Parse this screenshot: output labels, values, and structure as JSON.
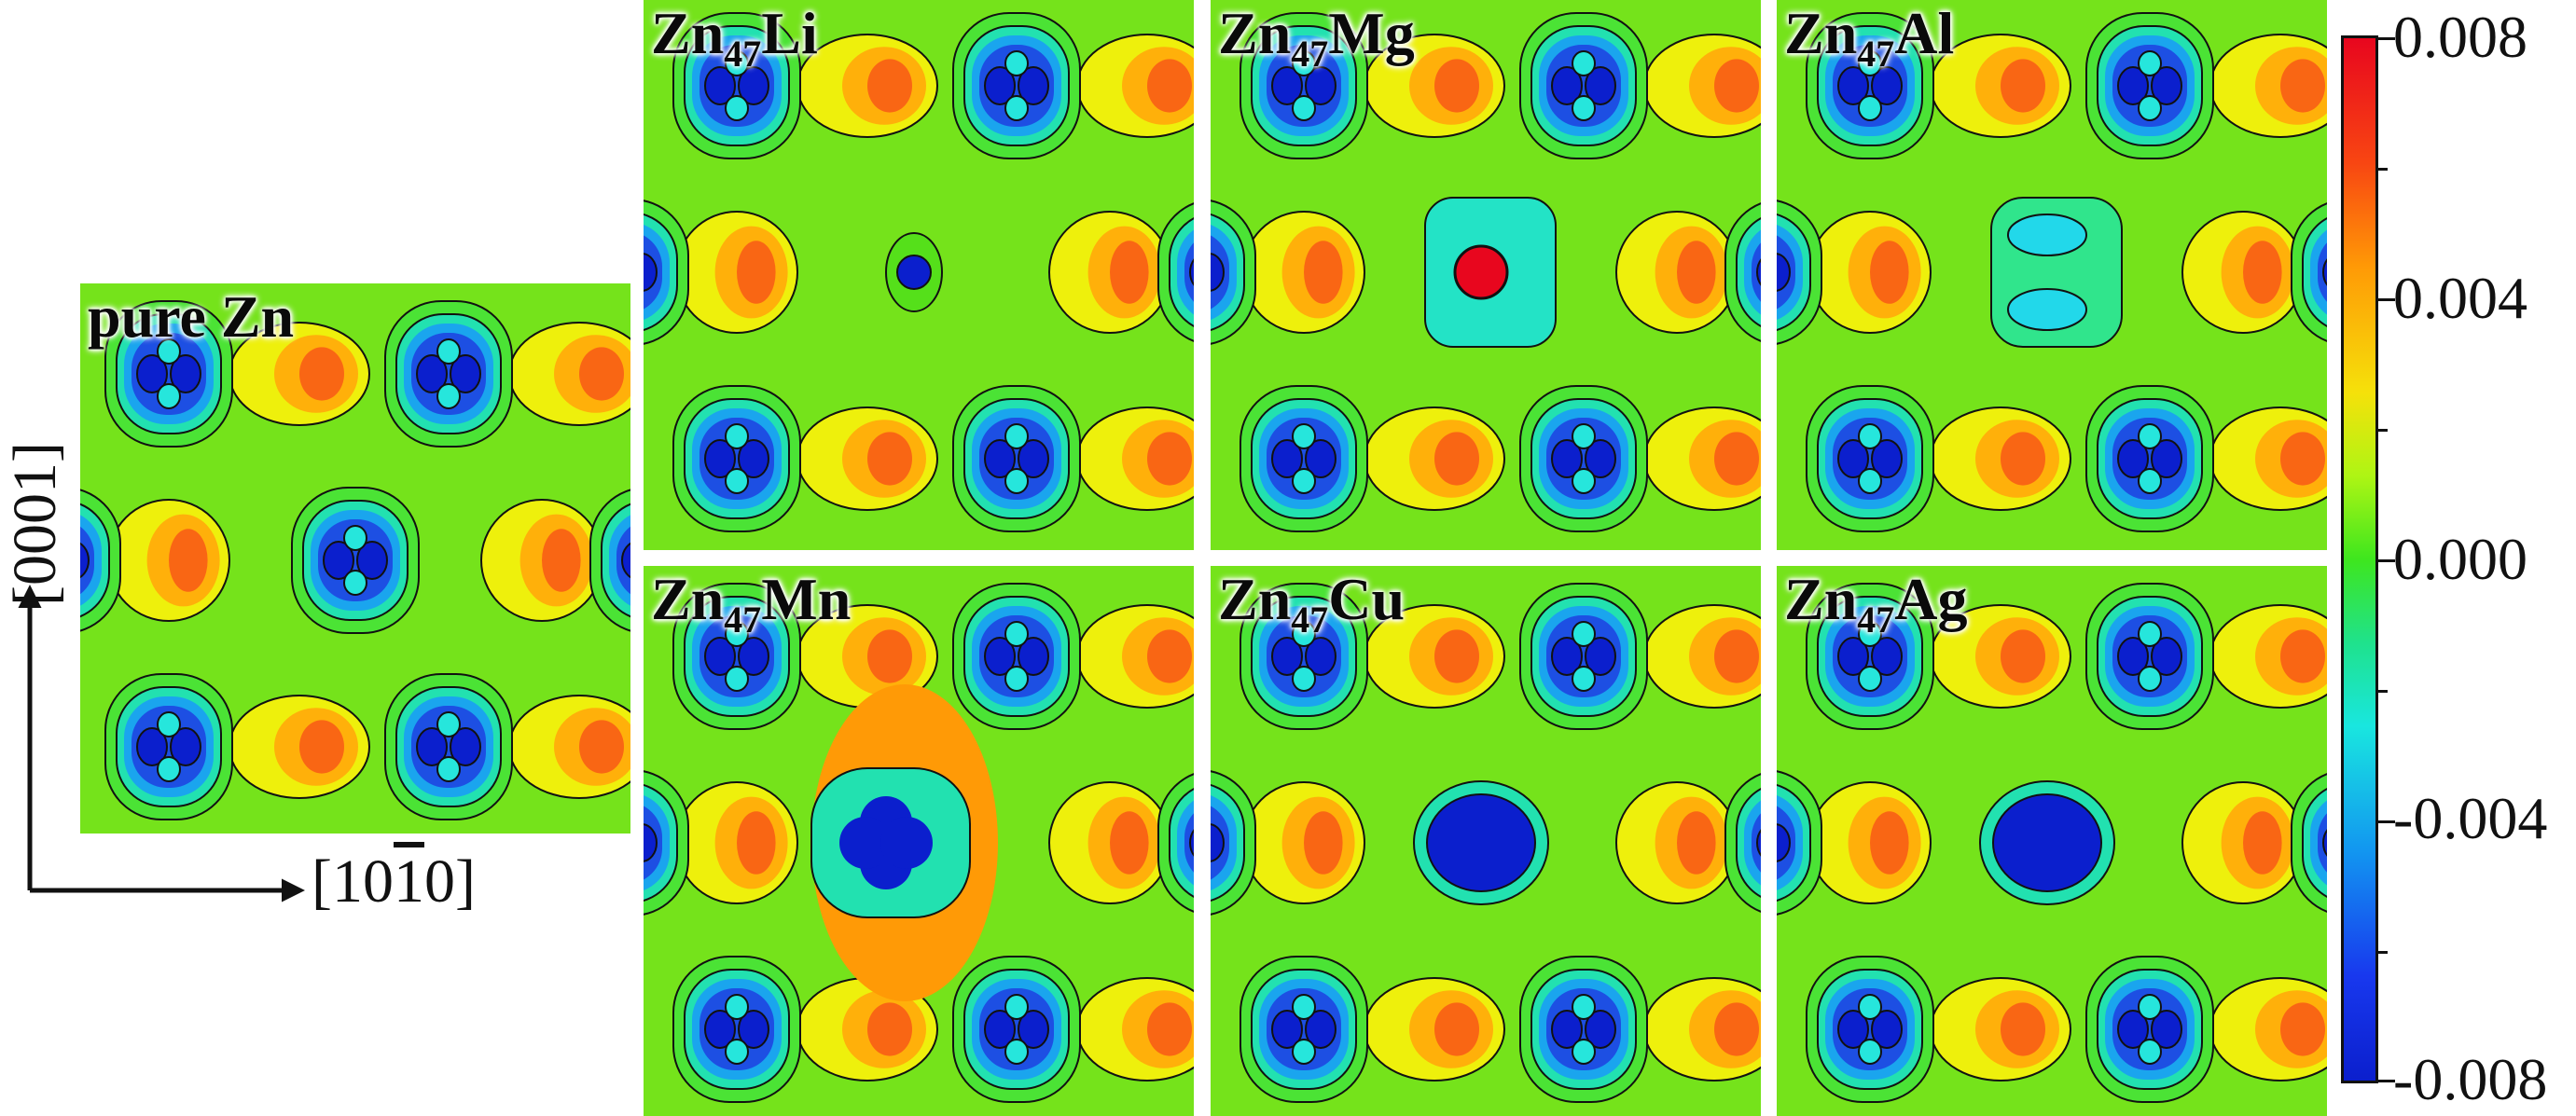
{
  "panels": [
    {
      "id": "pure-zn",
      "label_main": "pure Zn",
      "label_sub": "",
      "label_tail": "",
      "center": "none"
    },
    {
      "id": "li",
      "label_main": "Zn",
      "label_sub": "47",
      "label_tail": "Li",
      "center": "small-blue"
    },
    {
      "id": "mg",
      "label_main": "Zn",
      "label_sub": "47",
      "label_tail": "Mg",
      "center": "red-core"
    },
    {
      "id": "al",
      "label_main": "Zn",
      "label_sub": "47",
      "label_tail": "Al",
      "center": "split-cyan"
    },
    {
      "id": "mn",
      "label_main": "Zn",
      "label_sub": "47",
      "label_tail": "Mn",
      "center": "big-blue-cross"
    },
    {
      "id": "cu",
      "label_main": "Zn",
      "label_sub": "47",
      "label_tail": "Cu",
      "center": "big-blue"
    },
    {
      "id": "ag",
      "label_main": "Zn",
      "label_sub": "47",
      "label_tail": "Ag",
      "center": "big-blue"
    }
  ],
  "axes": {
    "vertical_label": "[0001]",
    "horizontal_label_pre": "[10",
    "horizontal_label_bar": "1",
    "horizontal_label_post": "0]"
  },
  "colorbar": {
    "labels": [
      "0.008",
      "0.004",
      "0.000",
      "-0.004",
      "-0.008"
    ],
    "colors": [
      "#e8061e",
      "#f5e10a",
      "#3ee61e",
      "#19e6df",
      "#0b1fcd"
    ]
  }
}
